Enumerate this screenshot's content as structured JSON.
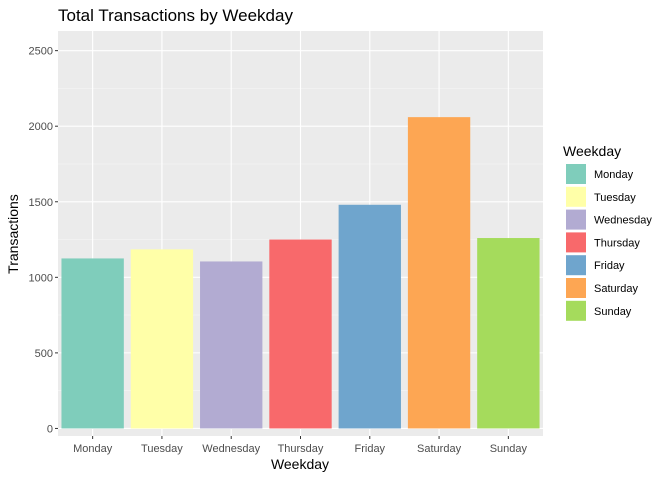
{
  "chart_data": {
    "type": "bar",
    "title": "Total Transactions by Weekday",
    "xlabel": "Weekday",
    "ylabel": "Transactions",
    "categories": [
      "Monday",
      "Tuesday",
      "Wednesday",
      "Thursday",
      "Friday",
      "Saturday",
      "Sunday"
    ],
    "values": [
      1125,
      1185,
      1105,
      1250,
      1480,
      2060,
      1260
    ],
    "colors": [
      "#7FCDBB",
      "#FFFFA8",
      "#B2ABD2",
      "#F8696B",
      "#6FA5CD",
      "#FDA653",
      "#A5DB5C"
    ],
    "ylim": [
      -50,
      2630
    ],
    "yticks": [
      0,
      500,
      1000,
      1500,
      2000,
      2500
    ],
    "grid": true,
    "legend": {
      "title": "Weekday",
      "placement": "right",
      "entries": [
        "Monday",
        "Tuesday",
        "Wednesday",
        "Thursday",
        "Friday",
        "Saturday",
        "Sunday"
      ]
    }
  }
}
